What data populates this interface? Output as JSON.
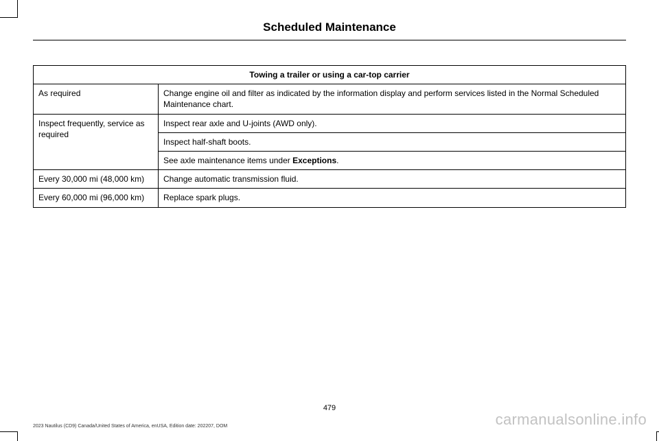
{
  "header": {
    "title": "Scheduled Maintenance"
  },
  "table": {
    "header": "Towing a trailer or using a car-top carrier",
    "rows": {
      "r1_freq": "As required",
      "r1_task": "Change engine oil and filter as indicated by the information display and perform services listed in the Normal Scheduled Maintenance chart.",
      "r2_freq": "Inspect frequently, service as required",
      "r2_task_a": "Inspect rear axle and U-joints (AWD only).",
      "r2_task_b": "Inspect half-shaft boots.",
      "r2_task_c_pre": "See axle maintenance items under ",
      "r2_task_c_bold": "Exceptions",
      "r2_task_c_post": ".",
      "r3_freq": "Every 30,000 mi (48,000 km)",
      "r3_task": "Change automatic transmission fluid.",
      "r4_freq": "Every 60,000 mi (96,000 km)",
      "r4_task": "Replace spark plugs."
    }
  },
  "footer": {
    "page_number": "479",
    "meta": "2023 Nautilus (CD9) Canada/United States of America, enUSA, Edition date: 202207, DOM",
    "watermark": "carmanualsonline.info"
  }
}
